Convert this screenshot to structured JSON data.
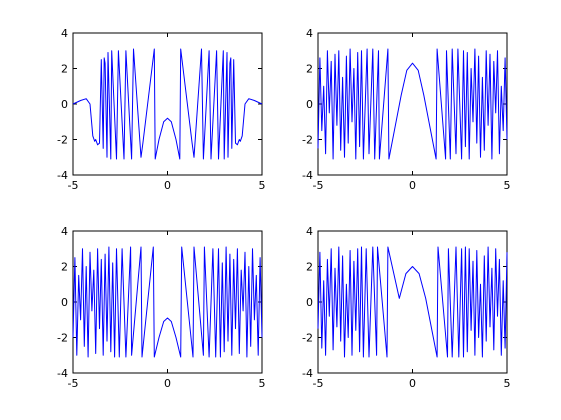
{
  "figure": {
    "background": "#ffffff",
    "axes_color": "#000000",
    "line_color": "#0000ff"
  },
  "chart_data": [
    {
      "type": "line",
      "xlim": [
        -5,
        5
      ],
      "ylim": [
        -4,
        4
      ],
      "xticks": [
        -5,
        0,
        5
      ],
      "yticks": [
        -4,
        -2,
        0,
        2,
        4
      ],
      "xtick_labels": [
        "-5",
        "0",
        "5"
      ],
      "ytick_labels": [
        "-4",
        "-2",
        "0",
        "2",
        "4"
      ],
      "grid": false,
      "series": [
        {
          "color": "#0000ff",
          "x": [
            -5.0,
            -4.6,
            -4.3,
            -4.1,
            -3.95,
            -3.85,
            -3.8,
            -3.7,
            -3.6,
            -3.5,
            -3.4,
            -3.35,
            -3.3,
            -3.2,
            -3.15,
            -3.0,
            -2.95,
            -2.7,
            -2.6,
            -2.3,
            -2.2,
            -1.9,
            -1.8,
            -1.4,
            -1.3,
            -0.7,
            -0.65,
            -0.45,
            -0.2,
            0.0,
            0.2,
            0.45,
            0.65,
            0.7,
            1.3,
            1.4,
            1.8,
            1.9,
            2.2,
            2.3,
            2.6,
            2.7,
            2.95,
            3.0,
            3.15,
            3.2,
            3.3,
            3.35,
            3.4,
            3.5,
            3.6,
            3.7,
            3.8,
            3.85,
            3.95,
            4.1,
            4.3,
            4.6,
            5.0
          ],
          "y": [
            0.0,
            0.2,
            0.3,
            0.0,
            -1.8,
            -2.1,
            -2.0,
            -2.3,
            -2.2,
            2.5,
            -2.5,
            2.6,
            2.3,
            -3.0,
            2.9,
            -3.1,
            3.0,
            -3.1,
            3.0,
            -3.1,
            3.0,
            -3.1,
            3.1,
            -3.0,
            -2.2,
            3.1,
            -3.1,
            -2.0,
            -1.0,
            -0.8,
            -1.0,
            -2.0,
            -3.1,
            3.1,
            -2.2,
            -3.0,
            3.1,
            -3.1,
            3.0,
            -3.1,
            3.0,
            -3.1,
            3.0,
            -3.1,
            2.9,
            -3.0,
            2.3,
            2.6,
            -2.5,
            2.5,
            -2.2,
            -2.3,
            -2.0,
            -2.1,
            -1.8,
            0.0,
            0.3,
            0.2,
            0.0
          ]
        }
      ]
    },
    {
      "type": "line",
      "xlim": [
        -5,
        5
      ],
      "ylim": [
        -4,
        4
      ],
      "xticks": [
        -5,
        0,
        5
      ],
      "yticks": [
        -4,
        -2,
        0,
        2,
        4
      ],
      "xtick_labels": [
        "-5",
        "0",
        "5"
      ],
      "ytick_labels": [
        "-4",
        "-2",
        "0",
        "2",
        "4"
      ],
      "grid": false,
      "series": [
        {
          "color": "#0000ff",
          "x": [
            -5.0,
            -4.9,
            -4.8,
            -4.7,
            -4.6,
            -4.5,
            -4.4,
            -4.3,
            -4.2,
            -4.1,
            -4.0,
            -3.9,
            -3.8,
            -3.7,
            -3.6,
            -3.5,
            -3.4,
            -3.3,
            -3.2,
            -3.1,
            -3.0,
            -2.9,
            -2.8,
            -2.7,
            -2.6,
            -2.4,
            -2.3,
            -2.1,
            -2.0,
            -1.8,
            -1.75,
            -1.3,
            -1.25,
            -0.6,
            -0.3,
            0.0,
            0.3,
            0.6,
            1.25,
            1.3,
            1.75,
            1.8,
            2.0,
            2.1,
            2.3,
            2.4,
            2.6,
            2.7,
            2.8,
            2.9,
            3.0,
            3.1,
            3.2,
            3.3,
            3.4,
            3.5,
            3.6,
            3.7,
            3.8,
            3.9,
            4.0,
            4.1,
            4.2,
            4.3,
            4.4,
            4.5,
            4.6,
            4.7,
            4.8,
            4.9,
            5.0
          ],
          "y": [
            -2.5,
            2.6,
            -1.5,
            1.0,
            -2.8,
            3.0,
            -0.5,
            2.4,
            -3.1,
            2.8,
            -1.2,
            3.0,
            -2.6,
            1.5,
            -3.0,
            2.7,
            -2.2,
            3.1,
            -1.0,
            2.0,
            -3.1,
            2.9,
            -2.4,
            3.0,
            -3.1,
            3.1,
            -2.8,
            3.1,
            -3.1,
            3.0,
            -3.1,
            3.1,
            -3.1,
            0.5,
            1.9,
            2.3,
            1.9,
            0.5,
            -3.1,
            3.1,
            -3.1,
            3.0,
            -3.1,
            3.1,
            -2.8,
            3.1,
            -3.1,
            3.0,
            -2.4,
            2.9,
            -3.1,
            2.0,
            -1.0,
            3.1,
            -2.2,
            2.7,
            -3.0,
            1.5,
            -2.6,
            3.0,
            -1.2,
            2.8,
            -3.1,
            2.4,
            -0.5,
            3.0,
            -2.8,
            1.0,
            -1.5,
            2.6,
            -2.0
          ]
        }
      ]
    },
    {
      "type": "line",
      "xlim": [
        -5,
        5
      ],
      "ylim": [
        -4,
        4
      ],
      "xticks": [
        -5,
        0,
        5
      ],
      "yticks": [
        -4,
        -2,
        0,
        2,
        4
      ],
      "xtick_labels": [
        "-5",
        "0",
        "5"
      ],
      "ytick_labels": [
        "-4",
        "-2",
        "0",
        "2",
        "4"
      ],
      "grid": false,
      "series": [
        {
          "color": "#0000ff",
          "x": [
            -5.0,
            -4.9,
            -4.8,
            -4.7,
            -4.6,
            -4.5,
            -4.4,
            -4.3,
            -4.2,
            -4.1,
            -4.0,
            -3.9,
            -3.8,
            -3.7,
            -3.6,
            -3.5,
            -3.4,
            -3.3,
            -3.2,
            -3.1,
            -3.0,
            -2.9,
            -2.8,
            -2.7,
            -2.55,
            -2.4,
            -2.2,
            -1.95,
            -1.9,
            -1.4,
            -1.35,
            -0.75,
            -0.7,
            -0.45,
            -0.2,
            0.0,
            0.2,
            0.45,
            0.7,
            0.75,
            1.35,
            1.4,
            1.9,
            1.95,
            2.2,
            2.4,
            2.55,
            2.7,
            2.8,
            2.9,
            3.0,
            3.1,
            3.2,
            3.3,
            3.4,
            3.5,
            3.6,
            3.7,
            3.8,
            3.9,
            4.0,
            4.1,
            4.2,
            4.3,
            4.4,
            4.5,
            4.6,
            4.7,
            4.8,
            4.9,
            5.0
          ],
          "y": [
            -2.0,
            2.5,
            -3.0,
            1.5,
            -1.0,
            3.0,
            -2.5,
            2.0,
            -3.1,
            2.8,
            -0.5,
            1.8,
            -2.9,
            3.0,
            -1.5,
            2.4,
            -3.0,
            2.7,
            -2.2,
            3.1,
            -2.8,
            2.2,
            -3.1,
            3.0,
            -3.1,
            3.0,
            -3.1,
            3.1,
            -3.0,
            3.1,
            -3.1,
            3.1,
            -3.1,
            -2.0,
            -1.1,
            -0.9,
            -1.1,
            -2.0,
            -3.1,
            3.1,
            -3.1,
            3.1,
            -3.0,
            3.1,
            -3.1,
            3.0,
            -3.1,
            3.0,
            -3.1,
            2.2,
            -2.8,
            3.1,
            -2.2,
            2.7,
            -3.0,
            2.4,
            -1.5,
            3.0,
            -2.9,
            1.8,
            -0.5,
            2.8,
            -3.1,
            2.0,
            -2.5,
            3.0,
            -1.0,
            1.5,
            -3.0,
            2.5,
            -2.0
          ]
        }
      ]
    },
    {
      "type": "line",
      "xlim": [
        -5,
        5
      ],
      "ylim": [
        -4,
        4
      ],
      "xticks": [
        -5,
        0,
        5
      ],
      "yticks": [
        -4,
        -2,
        0,
        2,
        4
      ],
      "xtick_labels": [
        "-5",
        "0",
        "5"
      ],
      "ytick_labels": [
        "-4",
        "-2",
        "0",
        "2",
        "4"
      ],
      "grid": false,
      "series": [
        {
          "color": "#0000ff",
          "x": [
            -5.0,
            -4.9,
            -4.8,
            -4.7,
            -4.6,
            -4.5,
            -4.4,
            -4.3,
            -4.2,
            -4.1,
            -4.0,
            -3.9,
            -3.8,
            -3.7,
            -3.6,
            -3.5,
            -3.4,
            -3.3,
            -3.2,
            -3.1,
            -3.0,
            -2.9,
            -2.8,
            -2.7,
            -2.6,
            -2.45,
            -2.3,
            -2.1,
            -1.9,
            -1.85,
            -1.35,
            -1.3,
            -0.7,
            -0.35,
            0.0,
            0.35,
            0.7,
            1.3,
            1.35,
            1.85,
            1.9,
            2.1,
            2.3,
            2.45,
            2.6,
            2.7,
            2.8,
            2.9,
            3.0,
            3.1,
            3.2,
            3.3,
            3.4,
            3.5,
            3.6,
            3.7,
            3.8,
            3.9,
            4.0,
            4.1,
            4.2,
            4.3,
            4.4,
            4.5,
            4.6,
            4.7,
            4.8,
            4.9,
            5.0
          ],
          "y": [
            -1.5,
            2.8,
            -2.6,
            1.2,
            -3.0,
            2.4,
            -0.8,
            3.0,
            -2.7,
            1.9,
            -1.4,
            3.1,
            -2.2,
            2.6,
            -3.1,
            1.0,
            -2.0,
            2.9,
            -3.0,
            2.3,
            -1.6,
            3.0,
            -2.8,
            3.1,
            -3.1,
            3.0,
            -3.1,
            3.1,
            -3.0,
            3.1,
            -3.1,
            3.1,
            0.2,
            1.6,
            2.0,
            1.6,
            0.2,
            -3.1,
            3.1,
            -3.1,
            3.0,
            -3.1,
            3.1,
            -3.1,
            3.0,
            -3.1,
            3.1,
            -2.8,
            3.0,
            -1.6,
            2.3,
            -3.0,
            2.9,
            -2.0,
            1.0,
            -3.1,
            2.6,
            -2.2,
            3.1,
            -1.4,
            1.9,
            -2.7,
            3.0,
            -0.8,
            2.4,
            -3.0,
            1.2,
            -2.6,
            2.8
          ]
        }
      ]
    }
  ]
}
